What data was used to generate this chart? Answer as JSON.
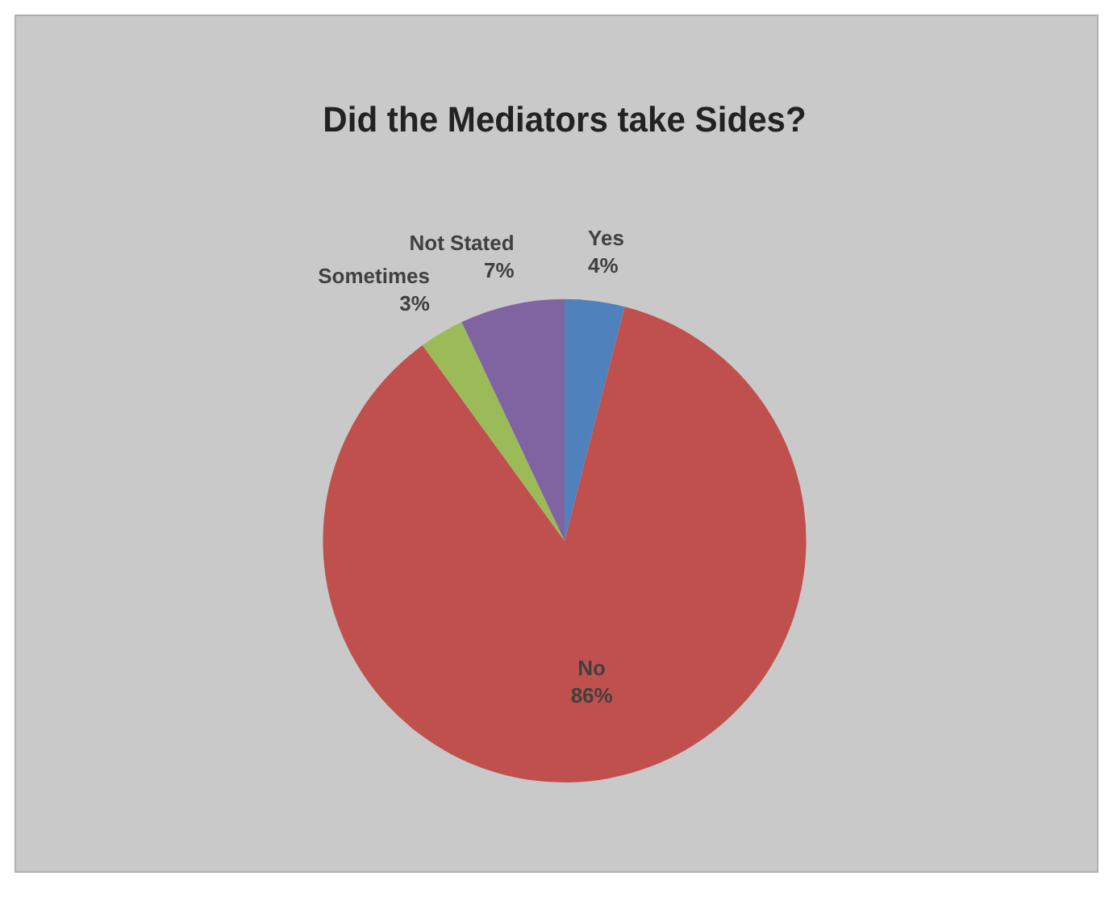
{
  "chart_data": {
    "type": "pie",
    "title": "Did the Mediators take Sides?",
    "categories": [
      "Yes",
      "No",
      "Sometimes",
      "Not Stated"
    ],
    "values": [
      4,
      86,
      3,
      7
    ],
    "value_labels": [
      "4%",
      "86%",
      "3%",
      "7%"
    ],
    "colors": [
      "#4f81bd",
      "#c0504d",
      "#9bbb59",
      "#8064a2"
    ],
    "legend": false
  }
}
